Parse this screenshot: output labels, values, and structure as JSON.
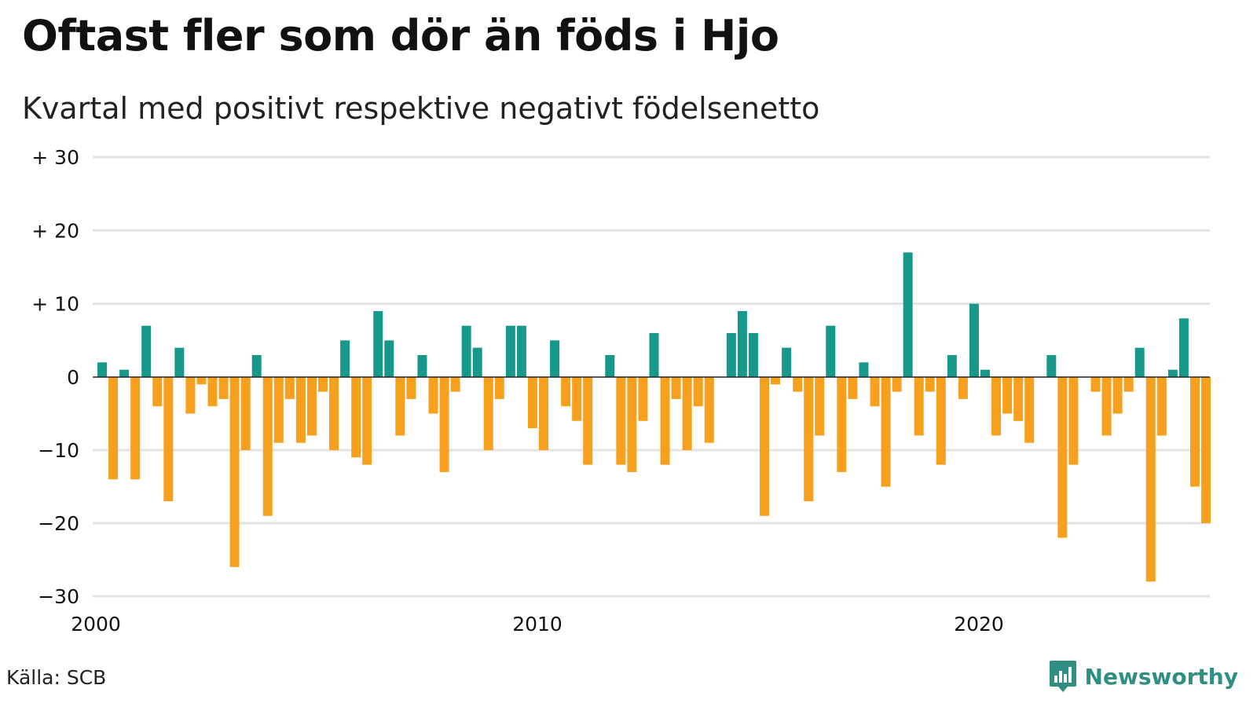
{
  "title": "Oftast fler som dör än föds i Hjo",
  "subtitle": "Kvartal med positivt respektive negativt födelsenetto",
  "source": "Källa: SCB",
  "brand": {
    "name": "Newsworthy"
  },
  "colors": {
    "positive": "#16998a",
    "negative": "#f7a01e",
    "grid": "#e3e3e3",
    "zero": "#222222"
  },
  "chart_data": {
    "type": "bar",
    "x_start": "2000 Q1",
    "x_tick_labels": [
      "2000",
      "2010",
      "2020"
    ],
    "y_tick_values": [
      30,
      20,
      10,
      0,
      -10,
      -20,
      -30
    ],
    "y_tick_labels": [
      "+ 30",
      "+ 20",
      "+ 10",
      "0",
      "−10",
      "−20",
      "−30"
    ],
    "ylim": [
      -30,
      30
    ],
    "grid": true,
    "values": [
      2,
      -14,
      1,
      -14,
      7,
      -4,
      -17,
      4,
      -5,
      -1,
      -4,
      -3,
      -26,
      -10,
      3,
      -19,
      -9,
      -3,
      -9,
      -8,
      -2,
      -10,
      5,
      -11,
      -12,
      9,
      5,
      -8,
      -3,
      3,
      -5,
      -13,
      -2,
      7,
      4,
      -10,
      -3,
      7,
      7,
      -7,
      -10,
      5,
      -4,
      -6,
      -12,
      0,
      3,
      -12,
      -13,
      -6,
      6,
      -12,
      -3,
      -10,
      -4,
      -9,
      0,
      6,
      9,
      6,
      -19,
      -1,
      4,
      -2,
      -17,
      -8,
      7,
      -13,
      -3,
      2,
      -4,
      -15,
      -2,
      17,
      -8,
      -2,
      -12,
      3,
      -3,
      10,
      1,
      -8,
      -5,
      -6,
      -9,
      0,
      3,
      -22,
      -12,
      0,
      -2,
      -8,
      -5,
      -2,
      4,
      -28,
      -8,
      1,
      8,
      -15,
      -20
    ]
  }
}
